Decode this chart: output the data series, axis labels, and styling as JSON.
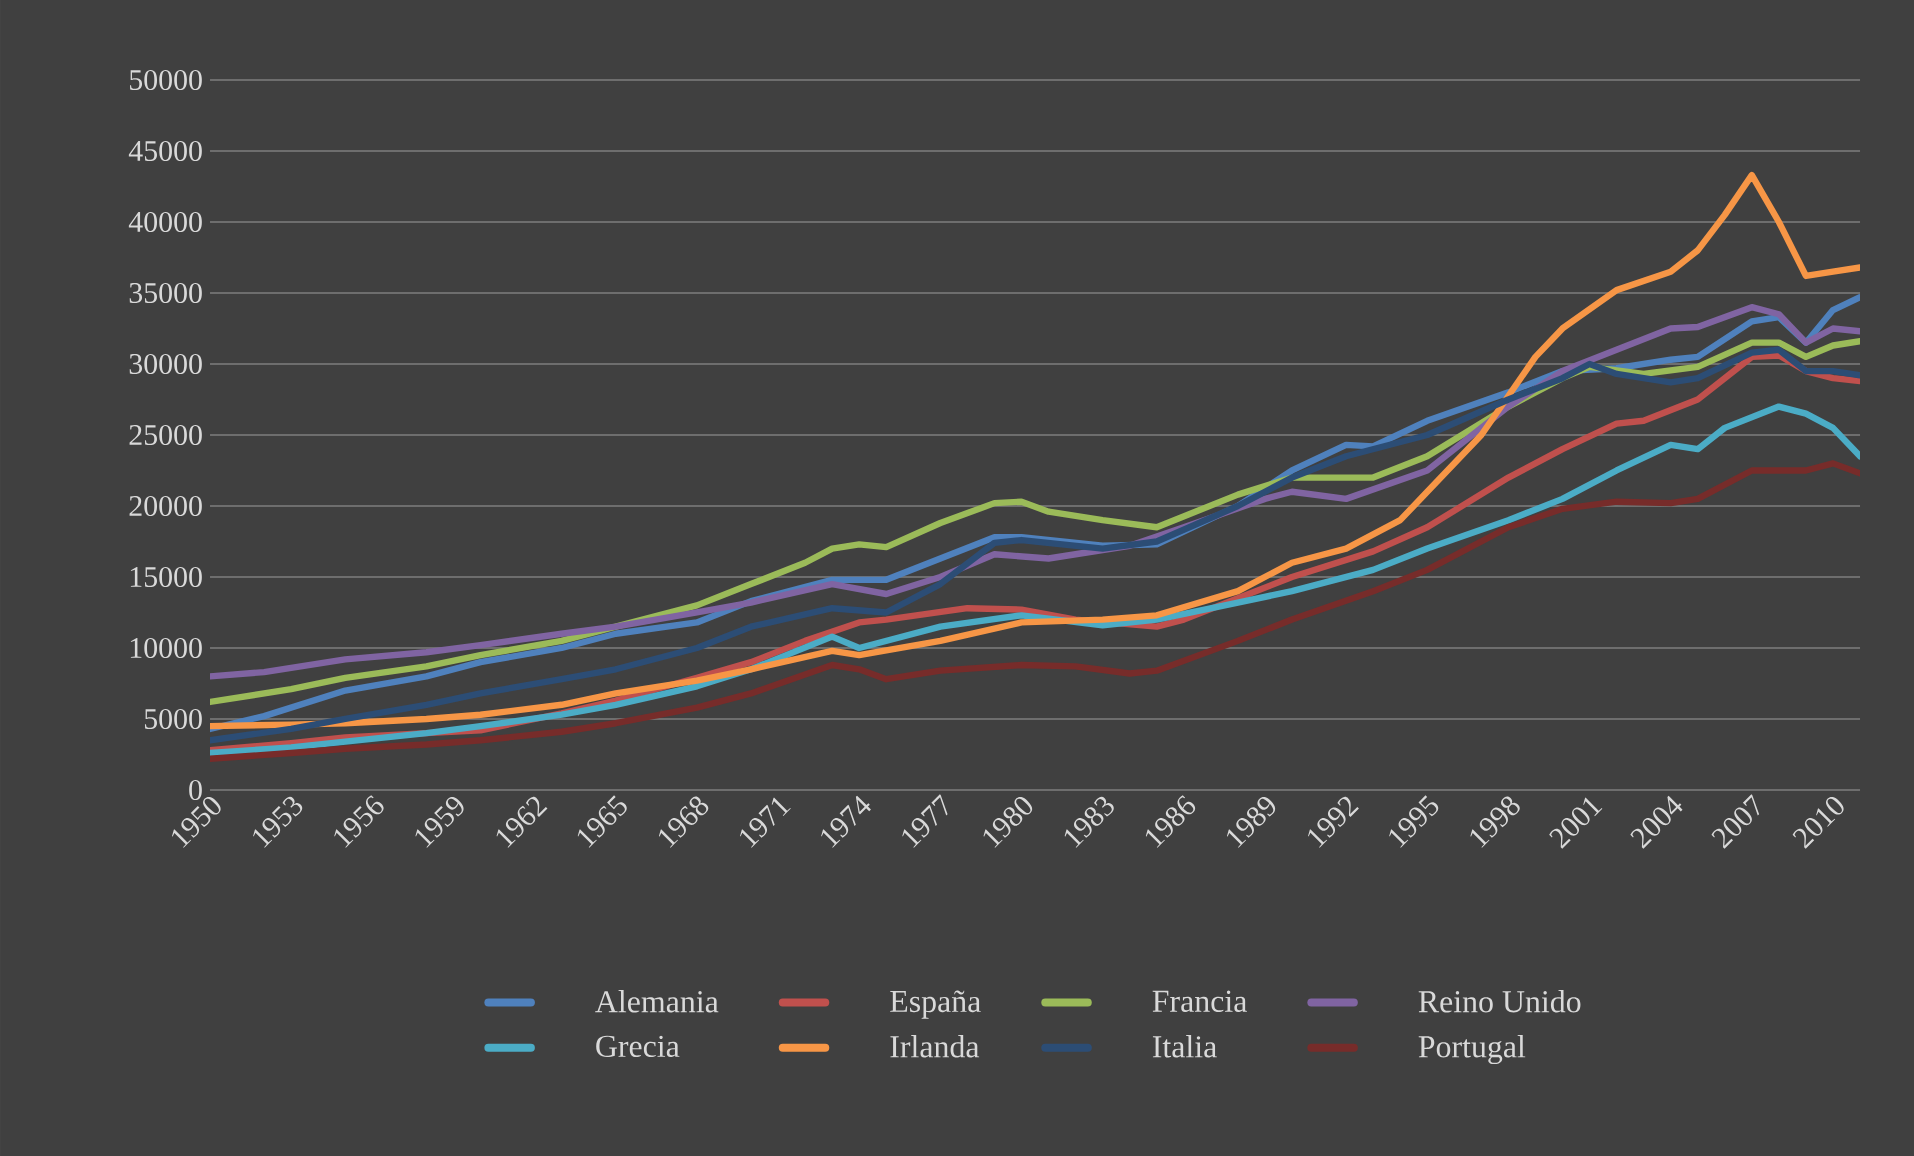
{
  "chart_data": {
    "type": "line",
    "xlim": [
      1950,
      2011
    ],
    "xticks": [
      1950,
      1953,
      1956,
      1959,
      1962,
      1965,
      1968,
      1971,
      1974,
      1977,
      1980,
      1983,
      1986,
      1989,
      1992,
      1995,
      1998,
      2001,
      2004,
      2007,
      2010
    ],
    "ylim": [
      0,
      50000
    ],
    "yticks": [
      0,
      5000,
      10000,
      15000,
      20000,
      25000,
      30000,
      35000,
      40000,
      45000,
      50000
    ],
    "grid": "y",
    "legend": "bottom",
    "line_style": "solid",
    "marker": "none",
    "series": [
      {
        "name": "Alemania",
        "color": "#4f81bd",
        "x": [
          1950,
          1952,
          1955,
          1958,
          1960,
          1963,
          1965,
          1968,
          1970,
          1973,
          1975,
          1977,
          1979,
          1980,
          1983,
          1985,
          1988,
          1990,
          1992,
          1993,
          1995,
          1998,
          2000,
          2002,
          2004,
          2005,
          2007,
          2008,
          2009,
          2010,
          2011
        ],
        "values": [
          4300,
          5200,
          7000,
          8000,
          9000,
          10000,
          11000,
          11800,
          13300,
          14800,
          14800,
          16300,
          17800,
          17800,
          17200,
          17300,
          20000,
          22500,
          24300,
          24200,
          26000,
          28000,
          29500,
          29700,
          30300,
          30500,
          33000,
          33300,
          31500,
          33800,
          34700
        ]
      },
      {
        "name": "España",
        "color": "#c0504d",
        "x": [
          1950,
          1953,
          1955,
          1958,
          1960,
          1963,
          1965,
          1968,
          1970,
          1972,
          1974,
          1975,
          1978,
          1980,
          1982,
          1985,
          1986,
          1988,
          1990,
          1993,
          1995,
          1998,
          2000,
          2002,
          2003,
          2005,
          2007,
          2008,
          2009,
          2010,
          2011
        ],
        "values": [
          2800,
          3300,
          3700,
          4000,
          4200,
          5400,
          6300,
          7900,
          9000,
          10500,
          11800,
          12000,
          12800,
          12700,
          12000,
          11500,
          12000,
          13500,
          15000,
          16800,
          18500,
          22000,
          24000,
          25800,
          26000,
          27500,
          30500,
          30600,
          29500,
          29000,
          28800
        ]
      },
      {
        "name": "Francia",
        "color": "#9bbb59",
        "x": [
          1950,
          1953,
          1955,
          1958,
          1960,
          1963,
          1965,
          1968,
          1970,
          1972,
          1973,
          1974,
          1975,
          1977,
          1979,
          1980,
          1981,
          1983,
          1985,
          1988,
          1990,
          1993,
          1995,
          1998,
          2000,
          2001,
          2003,
          2005,
          2007,
          2008,
          2009,
          2010,
          2011
        ],
        "values": [
          6200,
          7100,
          7900,
          8700,
          9500,
          10500,
          11500,
          13000,
          14500,
          16000,
          17000,
          17300,
          17100,
          18800,
          20200,
          20300,
          19600,
          19000,
          18500,
          20800,
          22000,
          22000,
          23500,
          27000,
          29000,
          29800,
          29300,
          29800,
          31500,
          31500,
          30500,
          31300,
          31600
        ]
      },
      {
        "name": "Reino Unido",
        "color": "#8064a2",
        "x": [
          1950,
          1952,
          1955,
          1958,
          1960,
          1963,
          1965,
          1968,
          1970,
          1973,
          1975,
          1977,
          1979,
          1981,
          1984,
          1986,
          1989,
          1990,
          1992,
          1995,
          1998,
          2000,
          2002,
          2004,
          2005,
          2007,
          2008,
          2009,
          2010,
          2011
        ],
        "values": [
          8000,
          8300,
          9200,
          9700,
          10200,
          11000,
          11500,
          12500,
          13200,
          14500,
          13800,
          15000,
          16600,
          16300,
          17200,
          18500,
          20500,
          21000,
          20500,
          22500,
          27000,
          29500,
          31000,
          32500,
          32600,
          34000,
          33500,
          31500,
          32500,
          32300
        ]
      },
      {
        "name": "Grecia",
        "color": "#4bacc6",
        "x": [
          1950,
          1953,
          1955,
          1958,
          1960,
          1963,
          1965,
          1968,
          1970,
          1973,
          1974,
          1977,
          1980,
          1983,
          1985,
          1988,
          1990,
          1993,
          1995,
          1998,
          2000,
          2002,
          2004,
          2005,
          2006,
          2008,
          2009,
          2010,
          2011
        ],
        "values": [
          2600,
          3000,
          3400,
          4000,
          4500,
          5300,
          6000,
          7300,
          8500,
          10800,
          10000,
          11500,
          12300,
          11600,
          12000,
          13200,
          14000,
          15500,
          17000,
          19000,
          20500,
          22500,
          24300,
          24000,
          25500,
          27000,
          26500,
          25500,
          23500
        ]
      },
      {
        "name": "Irlanda",
        "color": "#f79646",
        "x": [
          1950,
          1953,
          1955,
          1958,
          1960,
          1963,
          1965,
          1968,
          1970,
          1973,
          1974,
          1977,
          1980,
          1983,
          1985,
          1988,
          1990,
          1992,
          1994,
          1995,
          1997,
          1999,
          2000,
          2002,
          2004,
          2005,
          2006,
          2007,
          2008,
          2009,
          2010,
          2011
        ],
        "values": [
          4500,
          4600,
          4700,
          5000,
          5300,
          6000,
          6800,
          7700,
          8500,
          9800,
          9500,
          10500,
          11800,
          12000,
          12300,
          14000,
          16000,
          17000,
          19000,
          21000,
          25000,
          30500,
          32500,
          35200,
          36500,
          38000,
          40500,
          43300,
          40000,
          36200,
          36500,
          36800
        ]
      },
      {
        "name": "Italia",
        "color": "#2c4d75",
        "x": [
          1950,
          1953,
          1955,
          1958,
          1960,
          1963,
          1965,
          1968,
          1970,
          1973,
          1975,
          1977,
          1979,
          1980,
          1983,
          1985,
          1988,
          1990,
          1992,
          1995,
          1998,
          2000,
          2001,
          2002,
          2004,
          2005,
          2007,
          2008,
          2009,
          2010,
          2011
        ],
        "values": [
          3500,
          4300,
          5000,
          6000,
          6800,
          7800,
          8500,
          10000,
          11500,
          12800,
          12500,
          14500,
          17400,
          17600,
          17000,
          17500,
          20000,
          22000,
          23500,
          25000,
          27500,
          29000,
          30000,
          29300,
          28700,
          29000,
          30800,
          31000,
          29500,
          29500,
          29200
        ]
      },
      {
        "name": "Portugal",
        "color": "#772c2a",
        "x": [
          1950,
          1953,
          1955,
          1958,
          1960,
          1963,
          1965,
          1968,
          1970,
          1973,
          1974,
          1975,
          1977,
          1980,
          1982,
          1984,
          1985,
          1988,
          1990,
          1993,
          1995,
          1998,
          2000,
          2002,
          2004,
          2005,
          2007,
          2009,
          2010,
          2011
        ],
        "values": [
          2200,
          2600,
          2900,
          3200,
          3500,
          4100,
          4700,
          5800,
          6800,
          8800,
          8500,
          7800,
          8400,
          8800,
          8700,
          8200,
          8400,
          10500,
          12000,
          14000,
          15500,
          18500,
          19800,
          20300,
          20200,
          20500,
          22500,
          22500,
          23000,
          22300
        ]
      }
    ]
  }
}
